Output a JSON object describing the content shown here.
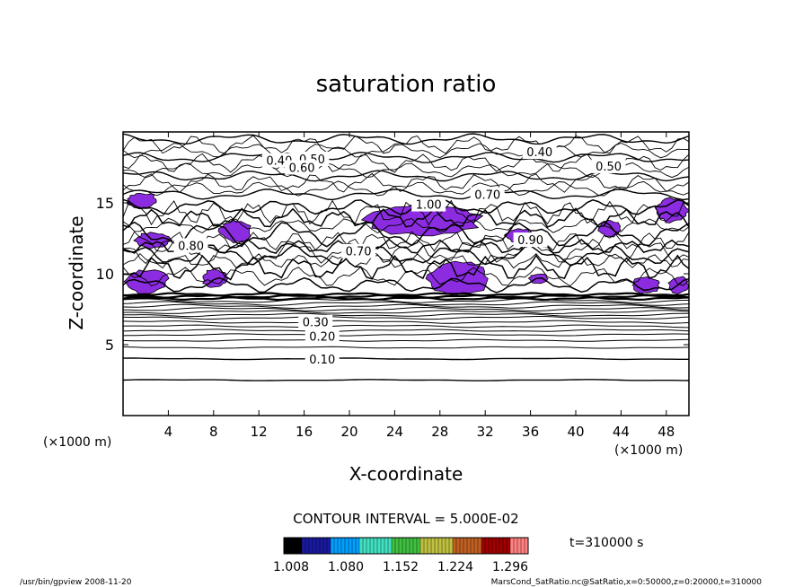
{
  "chart_data": {
    "type": "contour",
    "title": "saturation ratio",
    "xlabel": "X-coordinate",
    "ylabel": "Z-coordinate",
    "x_unit": "(×1000 m)",
    "y_unit": "(×1000 m)",
    "xlim": [
      0,
      50
    ],
    "ylim": [
      0,
      20
    ],
    "x_ticks": [
      4,
      8,
      12,
      16,
      20,
      24,
      28,
      32,
      36,
      40,
      44,
      48
    ],
    "y_ticks": [
      5,
      10,
      15
    ],
    "contour_interval_text": "CONTOUR INTERVAL = 5.000E-02",
    "time_text": "t=310000 s",
    "colorbar": {
      "tick_labels": [
        "1.008",
        "1.080",
        "1.152",
        "1.224",
        "1.296"
      ],
      "colors": [
        "#000000",
        "#1a1aa0",
        "#00a0ff",
        "#40e0c0",
        "#40c040",
        "#c0c040",
        "#c06020",
        "#a00000",
        "#ff8080"
      ]
    },
    "fill_color": "#8b2ce0",
    "contour_labels": [
      {
        "text": "0.10",
        "x": 17.6,
        "y": 4.0
      },
      {
        "text": "0.20",
        "x": 17.6,
        "y": 5.6
      },
      {
        "text": "0.30",
        "x": 17.0,
        "y": 6.6
      },
      {
        "text": "0.40",
        "x": 36.8,
        "y": 18.6
      },
      {
        "text": "0.50",
        "x": 42.9,
        "y": 17.6
      },
      {
        "text": "0.40",
        "x": 13.8,
        "y": 18.0
      },
      {
        "text": "0.50",
        "x": 16.7,
        "y": 18.1
      },
      {
        "text": "0.60",
        "x": 15.8,
        "y": 17.5
      },
      {
        "text": "0.70",
        "x": 32.2,
        "y": 15.6
      },
      {
        "text": "1.00",
        "x": 27.0,
        "y": 14.9
      },
      {
        "text": "0.90",
        "x": 36.0,
        "y": 12.4
      },
      {
        "text": "0.70",
        "x": 20.8,
        "y": 11.6
      },
      {
        "text": "0.80",
        "x": 6.0,
        "y": 12.0
      }
    ],
    "supersaturated_regions_ge_1": [
      {
        "x": [
          0.3,
          3.0
        ],
        "z": [
          14.6,
          15.7
        ]
      },
      {
        "x": [
          1.0,
          4.2
        ],
        "z": [
          11.8,
          12.9
        ]
      },
      {
        "x": [
          0.2,
          4.0
        ],
        "z": [
          8.6,
          10.3
        ]
      },
      {
        "x": [
          7.0,
          9.2
        ],
        "z": [
          9.0,
          10.3
        ]
      },
      {
        "x": [
          8.5,
          11.4
        ],
        "z": [
          12.2,
          13.8
        ]
      },
      {
        "x": [
          21.5,
          32.0
        ],
        "z": [
          12.6,
          15.0
        ]
      },
      {
        "x": [
          27.0,
          32.4
        ],
        "z": [
          8.5,
          10.8
        ]
      },
      {
        "x": [
          33.8,
          36.2
        ],
        "z": [
          12.2,
          13.2
        ]
      },
      {
        "x": [
          42.0,
          44.0
        ],
        "z": [
          12.6,
          13.8
        ]
      },
      {
        "x": [
          47.0,
          50.0
        ],
        "z": [
          13.6,
          15.3
        ]
      },
      {
        "x": [
          45.0,
          47.4
        ],
        "z": [
          8.6,
          9.8
        ]
      },
      {
        "x": [
          48.2,
          50.0
        ],
        "z": [
          8.6,
          9.8
        ]
      },
      {
        "x": [
          35.8,
          37.6
        ],
        "z": [
          9.3,
          10.0
        ]
      }
    ]
  },
  "footer": {
    "left": "/usr/bin/gpview  2008-11-20",
    "right": "MarsCond_SatRatio.nc@SatRatio,x=0:50000,z=0:20000,t=310000"
  }
}
